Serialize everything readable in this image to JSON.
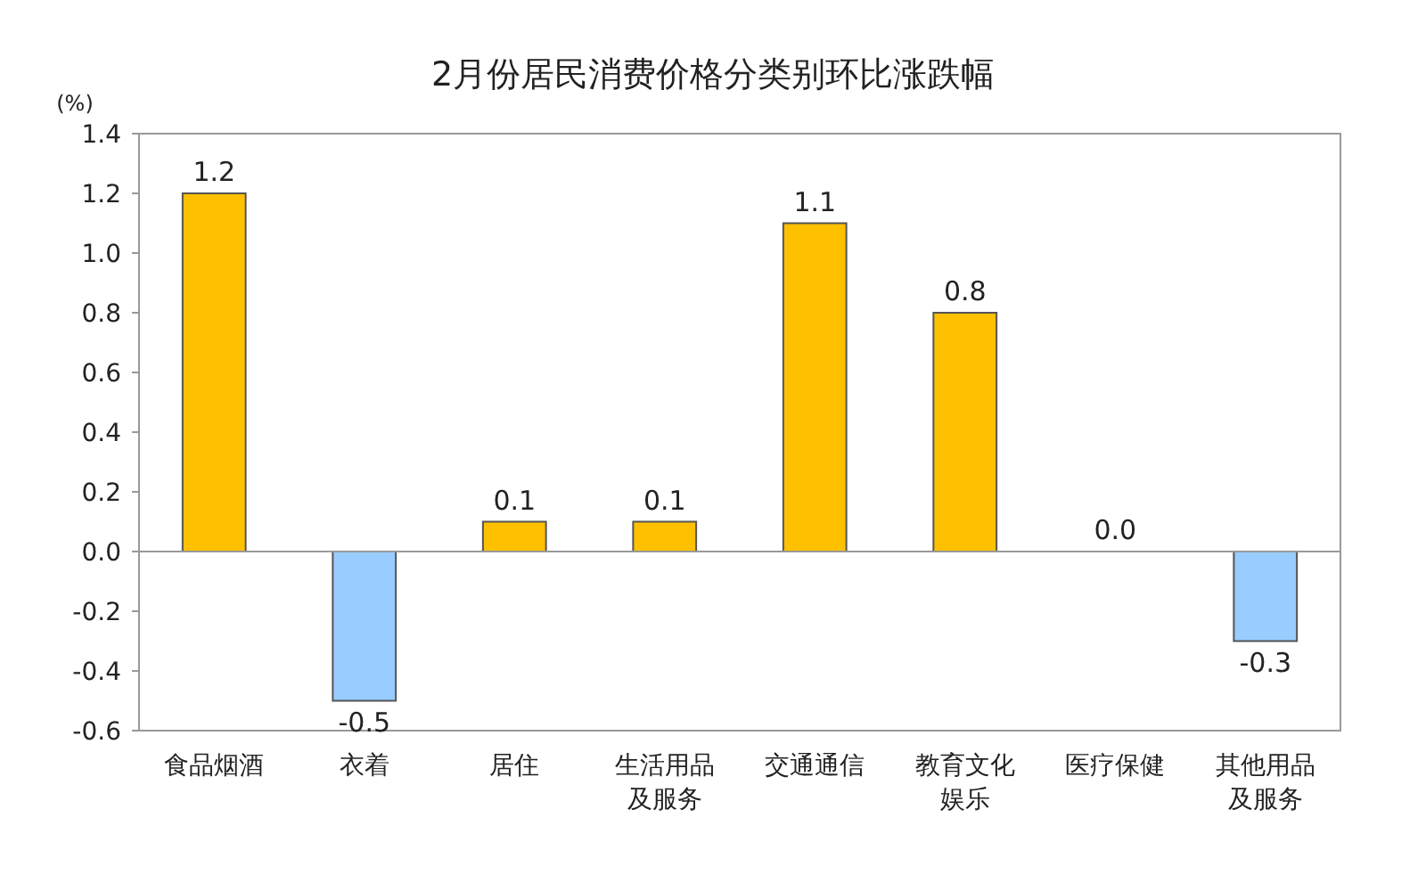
{
  "chart_data": {
    "type": "bar",
    "title": "2月份居民消费价格分类别环比涨跌幅",
    "ylabel": "(%)",
    "categories": [
      "食品烟酒",
      "衣着",
      "居住",
      "生活用品及服务",
      "交通通信",
      "教育文化娱乐",
      "医疗保健",
      "其他用品及服务"
    ],
    "values": [
      1.2,
      -0.5,
      0.1,
      0.1,
      1.1,
      0.8,
      0.0,
      -0.3
    ],
    "value_labels": [
      "1.2",
      "-0.5",
      "0.1",
      "0.1",
      "1.1",
      "0.8",
      "0.0",
      "-0.3"
    ],
    "colors": [
      "#ffc000",
      "#99ccff",
      "#ffc000",
      "#ffc000",
      "#ffc000",
      "#ffc000",
      "#ffc000",
      "#99ccff"
    ],
    "ylim": [
      -0.6,
      1.4
    ],
    "yticks": [
      -0.6,
      -0.4,
      -0.2,
      {
        "value": 0,
        "label": "0.0"
      },
      0.2,
      0.4,
      0.6,
      0.8,
      {
        "value": 1,
        "label": "1.0"
      },
      1.2,
      1.4
    ]
  }
}
